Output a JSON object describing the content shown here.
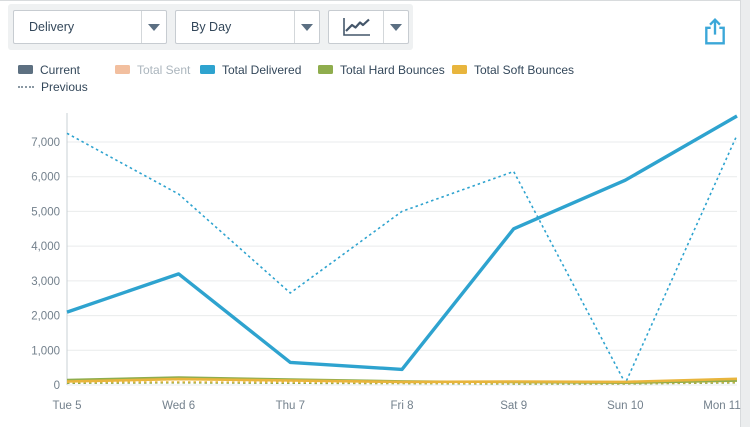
{
  "toolbar": {
    "metric_dropdown": {
      "value": "Delivery",
      "icon": "chevron-down-icon"
    },
    "interval_dropdown": {
      "value": "By Day",
      "icon": "chevron-down-icon"
    },
    "chart_type_dropdown": {
      "selected_icon": "line-chart-icon",
      "icon": "chevron-down-icon"
    },
    "export_icon": "share-export-icon",
    "accent_color": "#3ba7d8"
  },
  "legend": {
    "items": [
      {
        "label": "Current",
        "color": "#5d7081",
        "swatch": "solid",
        "disabled": false
      },
      {
        "label": "Total Sent",
        "color": "#f2bf9f",
        "swatch": "solid",
        "disabled": true
      },
      {
        "label": "Total Delivered",
        "color": "#2ea3cf",
        "swatch": "solid",
        "disabled": false
      },
      {
        "label": "Total Hard Bounces",
        "color": "#8fad4d",
        "swatch": "solid",
        "disabled": false
      },
      {
        "label": "Total Soft Bounces",
        "color": "#e8b53d",
        "swatch": "solid",
        "disabled": false
      },
      {
        "label": "Previous",
        "color": "#8a98a3",
        "swatch": "dotted-line",
        "disabled": false
      }
    ]
  },
  "chart_data": {
    "type": "line",
    "title": "",
    "xlabel": "",
    "ylabel": "",
    "grid": true,
    "legend_position": "top",
    "ylim": [
      0,
      7800
    ],
    "categories": [
      "Tue 5",
      "Wed 6",
      "Thu 7",
      "Fri 8",
      "Sat 9",
      "Sun 10",
      "Mon 11"
    ],
    "yticks": [
      {
        "value": 0,
        "label": "0"
      },
      {
        "value": 1000,
        "label": "1,000"
      },
      {
        "value": 2000,
        "label": "2,000"
      },
      {
        "value": 3000,
        "label": "3,000"
      },
      {
        "value": 4000,
        "label": "4,000"
      },
      {
        "value": 5000,
        "label": "5,000"
      },
      {
        "value": 6000,
        "label": "6,000"
      },
      {
        "value": 7000,
        "label": "7,000"
      }
    ],
    "series": [
      {
        "name": "Total Delivered",
        "period": "previous",
        "color": "#2ea3cf",
        "line_style": "dotted",
        "stroke_width": 1.6,
        "values": [
          7250,
          5500,
          2650,
          5000,
          6150,
          50,
          7200
        ]
      },
      {
        "name": "Total Delivered",
        "period": "current",
        "color": "#2ea3cf",
        "line_style": "solid",
        "stroke_width": 3.4,
        "values": [
          2100,
          3200,
          650,
          450,
          4500,
          5900,
          7750
        ]
      },
      {
        "name": "Total Hard Bounces",
        "period": "previous",
        "color": "#8fad4d",
        "line_style": "dotted",
        "stroke_width": 1.4,
        "values": [
          50,
          60,
          50,
          40,
          30,
          30,
          60
        ]
      },
      {
        "name": "Total Soft Bounces",
        "period": "previous",
        "color": "#e8b53d",
        "line_style": "dotted",
        "stroke_width": 1.4,
        "values": [
          80,
          90,
          80,
          60,
          50,
          40,
          90
        ]
      },
      {
        "name": "Total Hard Bounces",
        "period": "current",
        "color": "#8fad4d",
        "line_style": "solid",
        "stroke_width": 2.2,
        "values": [
          150,
          220,
          160,
          110,
          80,
          60,
          120
        ]
      },
      {
        "name": "Total Soft Bounces",
        "period": "current",
        "color": "#e8b53d",
        "line_style": "solid",
        "stroke_width": 2.6,
        "values": [
          100,
          170,
          130,
          90,
          100,
          90,
          180
        ]
      }
    ],
    "axis_colors": {
      "grid": "#e9ebec",
      "axis_line": "#c9d0d4",
      "tick_text": "#73808c"
    }
  }
}
